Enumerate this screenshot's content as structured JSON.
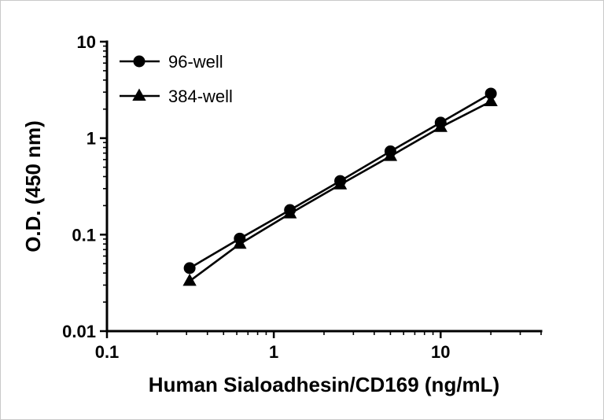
{
  "figure": {
    "background": "#ffffff",
    "axis_color": "#000000"
  },
  "chart_data": {
    "type": "line",
    "title": "",
    "xlabel": "Human Sialoadhesin/CD169 (ng/mL)",
    "ylabel": "O.D. (450 nm)",
    "x_scale": "log",
    "y_scale": "log",
    "xlim": [
      0.1,
      40
    ],
    "ylim": [
      0.01,
      10
    ],
    "x_ticks": [
      0.1,
      1,
      10
    ],
    "x_tick_labels": [
      "0.1",
      "1",
      "10"
    ],
    "y_ticks": [
      0.01,
      0.1,
      1,
      10
    ],
    "y_tick_labels": [
      "0.01",
      "0.1",
      "1",
      "10"
    ],
    "grid": false,
    "legend_position": "top-left-inside",
    "line_color": "#000000",
    "series": [
      {
        "name": "96-well",
        "marker": "circle",
        "color": "#000000",
        "x": [
          0.313,
          0.625,
          1.25,
          2.5,
          5,
          10,
          20
        ],
        "y": [
          0.045,
          0.091,
          0.18,
          0.36,
          0.73,
          1.45,
          2.9
        ]
      },
      {
        "name": "384-well",
        "marker": "triangle",
        "color": "#000000",
        "x": [
          0.313,
          0.625,
          1.25,
          2.5,
          5,
          10,
          20
        ],
        "y": [
          0.033,
          0.08,
          0.165,
          0.33,
          0.65,
          1.3,
          2.4
        ]
      }
    ]
  }
}
